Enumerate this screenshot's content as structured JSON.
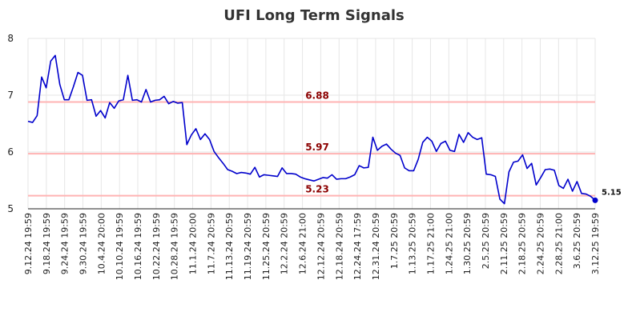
{
  "chart_data": {
    "type": "line",
    "title": "UFI Long Term Signals",
    "ylim": [
      5,
      8
    ],
    "yticks": [
      "5",
      "6",
      "7",
      "8"
    ],
    "grid": true,
    "x_tick_labels": [
      "9.12.24 19:59",
      "9.18.24 19:59",
      "9.24.24 19:59",
      "9.30.24 19:59",
      "10.4.24 20:00",
      "10.10.24 19:59",
      "10.16.24 19:59",
      "10.22.24 19:59",
      "10.28.24 19:59",
      "11.1.24 20:00",
      "11.7.24 20:59",
      "11.13.24 20:59",
      "11.19.24 20:59",
      "11.25.24 20:59",
      "12.2.24 20:59",
      "12.6.24 21:00",
      "12.12.24 20:59",
      "12.18.24 20:59",
      "12.24.24 17:59",
      "12.31.24 20:59",
      "1.7.25 20:59",
      "1.13.25 20:59",
      "1.17.25 21:00",
      "1.24.25 21:00",
      "1.30.25 20:59",
      "2.5.25 20:59",
      "2.11.25 20:59",
      "2.18.25 20:59",
      "2.24.25 20:59",
      "2.28.25 21:00",
      "3.6.25 20:59",
      "3.12.25 19:59"
    ],
    "levels": [
      {
        "value": 6.88,
        "label": "6.88",
        "color": "#ffb3b3"
      },
      {
        "value": 5.97,
        "label": "5.97",
        "color": "#ffb3b3"
      },
      {
        "value": 5.23,
        "label": "5.23",
        "color": "#ffb3b3"
      }
    ],
    "series": [
      {
        "color": "#0000cc",
        "values": [
          6.54,
          6.52,
          6.64,
          7.32,
          7.13,
          7.6,
          7.7,
          7.19,
          6.92,
          6.92,
          7.15,
          7.4,
          7.35,
          6.91,
          6.92,
          6.63,
          6.73,
          6.6,
          6.87,
          6.77,
          6.9,
          6.92,
          7.35,
          6.91,
          6.92,
          6.88,
          7.1,
          6.88,
          6.91,
          6.92,
          6.98,
          6.85,
          6.89,
          6.86,
          6.87,
          6.13,
          6.3,
          6.41,
          6.22,
          6.32,
          6.22,
          6.01,
          5.9,
          5.8,
          5.69,
          5.66,
          5.62,
          5.64,
          5.63,
          5.61,
          5.73,
          5.56,
          5.6,
          5.59,
          5.58,
          5.57,
          5.72,
          5.62,
          5.62,
          5.61,
          5.56,
          5.53,
          5.51,
          5.49,
          5.52,
          5.55,
          5.54,
          5.6,
          5.52,
          5.53,
          5.53,
          5.56,
          5.6,
          5.76,
          5.72,
          5.73,
          6.26,
          6.03,
          6.1,
          6.14,
          6.05,
          5.98,
          5.94,
          5.72,
          5.67,
          5.67,
          5.87,
          6.17,
          6.26,
          6.19,
          6.01,
          6.15,
          6.19,
          6.03,
          6.01,
          6.31,
          6.17,
          6.34,
          6.26,
          6.22,
          6.25,
          5.61,
          5.6,
          5.57,
          5.17,
          5.09,
          5.65,
          5.82,
          5.84,
          5.95,
          5.71,
          5.8,
          5.42,
          5.55,
          5.69,
          5.7,
          5.68,
          5.41,
          5.36,
          5.52,
          5.31,
          5.48,
          5.27,
          5.26,
          5.22,
          5.15
        ]
      }
    ],
    "last_value": {
      "value": 5.15,
      "label": "5.15"
    }
  }
}
